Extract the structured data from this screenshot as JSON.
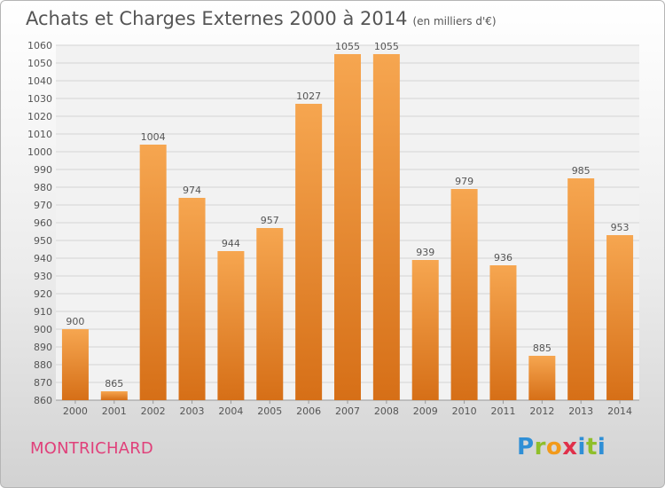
{
  "header": {
    "title": "Achats et Charges Externes 2000 à 2014",
    "subtitle": "(en milliers d'€)"
  },
  "footer": {
    "commune": "MONTRICHARD",
    "logo_text": [
      "P",
      "r",
      "o",
      "x",
      "i",
      "t",
      "i"
    ]
  },
  "colors": {
    "bar_top": "#f6a650",
    "bar_bottom": "#d66f17",
    "commune": "#e0407a",
    "text": "#555555"
  },
  "chart_data": {
    "type": "bar",
    "title": "Achats et Charges Externes 2000 à 2014",
    "subtitle": "(en milliers d'€)",
    "categories": [
      "2000",
      "2001",
      "2002",
      "2003",
      "2004",
      "2005",
      "2006",
      "2007",
      "2008",
      "2009",
      "2010",
      "2011",
      "2012",
      "2013",
      "2014"
    ],
    "values": [
      900,
      865,
      1004,
      974,
      944,
      957,
      1027,
      1055,
      1055,
      939,
      979,
      936,
      885,
      985,
      953
    ],
    "ylim": [
      860,
      1060
    ],
    "ytick_step": 10,
    "grid": true,
    "legend": "none"
  }
}
